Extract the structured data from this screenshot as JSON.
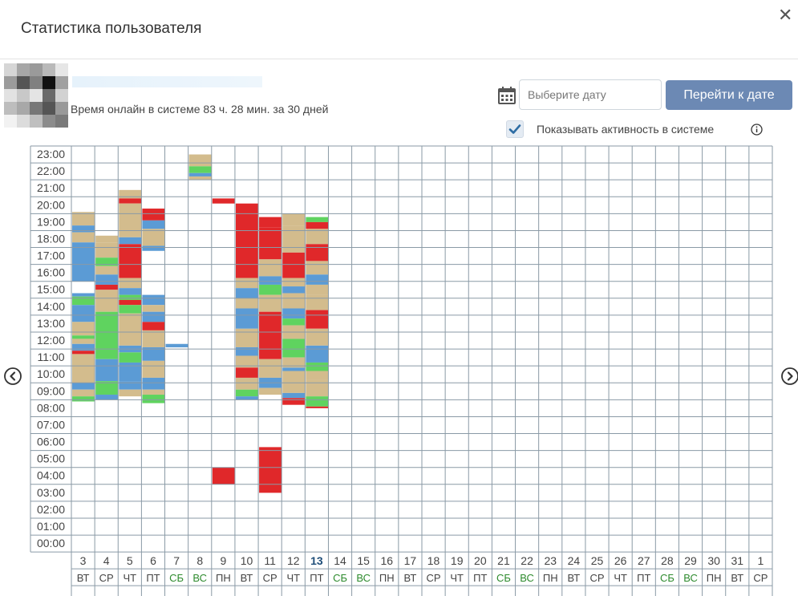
{
  "modal": {
    "title": "Статистика пользователя",
    "close_symbol": "✕"
  },
  "user": {
    "online_text": "Время онлайн в системе 83 ч. 28 мин. за 30 дней"
  },
  "controls": {
    "date_placeholder": "Выберите дату",
    "goto_button": "Перейти к дате",
    "show_activity_label": "Показывать активность в системе",
    "show_activity_checked": true
  },
  "icons": {
    "calendar": "calendar-icon",
    "check": "check-icon",
    "info": "info-icon",
    "prev": "chevron-left-circle-icon",
    "next": "chevron-right-circle-icon",
    "close": "close-icon"
  },
  "colors": {
    "beige": "#d3bc8d",
    "blue": "#5b9bd5",
    "green": "#5fd35f",
    "red": "#e0282a",
    "weekend": "#2e8b2e",
    "today": "#1f4e79",
    "button": "#6c89b4"
  },
  "hours": [
    "23:00",
    "22:00",
    "21:00",
    "20:00",
    "19:00",
    "18:00",
    "17:00",
    "16:00",
    "15:00",
    "14:00",
    "13:00",
    "12:00",
    "11:00",
    "10:00",
    "09:00",
    "08:00",
    "07:00",
    "06:00",
    "05:00",
    "04:00",
    "03:00",
    "02:00",
    "01:00",
    "00:00"
  ],
  "days": [
    {
      "date": "3",
      "dow": "ВТ"
    },
    {
      "date": "4",
      "dow": "СР"
    },
    {
      "date": "5",
      "dow": "ЧТ"
    },
    {
      "date": "6",
      "dow": "ПТ"
    },
    {
      "date": "7",
      "dow": "СБ",
      "weekend": true
    },
    {
      "date": "8",
      "dow": "ВС",
      "weekend": true
    },
    {
      "date": "9",
      "dow": "ПН"
    },
    {
      "date": "10",
      "dow": "ВТ"
    },
    {
      "date": "11",
      "dow": "СР"
    },
    {
      "date": "12",
      "dow": "ЧТ"
    },
    {
      "date": "13",
      "dow": "ПТ",
      "today": true
    },
    {
      "date": "14",
      "dow": "СБ",
      "weekend": true
    },
    {
      "date": "15",
      "dow": "ВС",
      "weekend": true
    },
    {
      "date": "16",
      "dow": "ПН"
    },
    {
      "date": "17",
      "dow": "ВТ"
    },
    {
      "date": "18",
      "dow": "СР"
    },
    {
      "date": "19",
      "dow": "ЧТ"
    },
    {
      "date": "20",
      "dow": "ПТ"
    },
    {
      "date": "21",
      "dow": "СБ",
      "weekend": true
    },
    {
      "date": "22",
      "dow": "ВС",
      "weekend": true
    },
    {
      "date": "23",
      "dow": "ПН"
    },
    {
      "date": "24",
      "dow": "ВТ"
    },
    {
      "date": "25",
      "dow": "СР"
    },
    {
      "date": "26",
      "dow": "ЧТ"
    },
    {
      "date": "27",
      "dow": "ПТ"
    },
    {
      "date": "28",
      "dow": "СБ",
      "weekend": true
    },
    {
      "date": "29",
      "dow": "ВС",
      "weekend": true
    },
    {
      "date": "30",
      "dow": "ПН"
    },
    {
      "date": "31",
      "dow": "ВТ"
    },
    {
      "date": "1",
      "dow": "СР"
    }
  ],
  "activity": [
    {
      "day": 0,
      "segs": [
        [
          20.1,
          19.3,
          "beige"
        ],
        [
          19.3,
          18.9,
          "blue"
        ],
        [
          18.9,
          18.3,
          "beige"
        ],
        [
          18.3,
          16.0,
          "blue"
        ],
        [
          15.3,
          15.1,
          "blue"
        ],
        [
          15.1,
          14.6,
          "green"
        ],
        [
          14.6,
          13.6,
          "blue"
        ],
        [
          13.6,
          12.8,
          "beige"
        ],
        [
          12.8,
          12.6,
          "green"
        ],
        [
          12.6,
          12.3,
          "beige"
        ],
        [
          12.3,
          11.9,
          "blue"
        ],
        [
          11.9,
          11.7,
          "red"
        ],
        [
          11.7,
          10.0,
          "beige"
        ],
        [
          10.0,
          9.6,
          "blue"
        ],
        [
          9.6,
          9.2,
          "beige"
        ],
        [
          9.2,
          8.9,
          "green"
        ]
      ]
    },
    {
      "day": 1,
      "segs": [
        [
          18.7,
          18.3,
          "beige"
        ],
        [
          18.3,
          17.4,
          "beige"
        ],
        [
          17.4,
          16.9,
          "green"
        ],
        [
          16.9,
          16.4,
          "beige"
        ],
        [
          16.4,
          15.8,
          "blue"
        ],
        [
          15.8,
          15.5,
          "red"
        ],
        [
          15.5,
          14.2,
          "beige"
        ],
        [
          14.2,
          11.4,
          "green"
        ],
        [
          11.4,
          10.1,
          "blue"
        ],
        [
          10.1,
          9.3,
          "green"
        ],
        [
          9.3,
          9.0,
          "blue"
        ]
      ]
    },
    {
      "day": 2,
      "segs": [
        [
          21.4,
          20.9,
          "beige"
        ],
        [
          20.9,
          20.6,
          "red"
        ],
        [
          20.6,
          18.6,
          "beige"
        ],
        [
          18.6,
          18.2,
          "blue"
        ],
        [
          18.2,
          16.2,
          "red"
        ],
        [
          16.2,
          15.6,
          "beige"
        ],
        [
          15.6,
          15.2,
          "blue"
        ],
        [
          15.2,
          14.9,
          "green"
        ],
        [
          14.9,
          14.6,
          "red"
        ],
        [
          14.6,
          14.1,
          "green"
        ],
        [
          14.1,
          12.2,
          "beige"
        ],
        [
          12.2,
          11.8,
          "blue"
        ],
        [
          11.8,
          11.2,
          "green"
        ],
        [
          11.2,
          10.1,
          "blue"
        ],
        [
          10.1,
          9.6,
          "blue"
        ],
        [
          9.6,
          9.2,
          "beige"
        ]
      ]
    },
    {
      "day": 3,
      "segs": [
        [
          20.3,
          19.6,
          "red"
        ],
        [
          19.6,
          19.1,
          "blue"
        ],
        [
          19.1,
          18.1,
          "beige"
        ],
        [
          18.1,
          17.8,
          "blue"
        ],
        [
          15.2,
          14.6,
          "blue"
        ],
        [
          14.6,
          14.2,
          "beige"
        ],
        [
          14.2,
          13.6,
          "blue"
        ],
        [
          13.6,
          13.1,
          "red"
        ],
        [
          13.1,
          12.1,
          "beige"
        ],
        [
          12.1,
          11.3,
          "blue"
        ],
        [
          11.3,
          10.3,
          "beige"
        ],
        [
          10.3,
          9.6,
          "blue"
        ],
        [
          9.6,
          9.3,
          "beige"
        ],
        [
          9.3,
          8.8,
          "green"
        ]
      ]
    },
    {
      "day": 4,
      "segs": [
        [
          12.3,
          12.1,
          "blue"
        ]
      ]
    },
    {
      "day": 5,
      "segs": [
        [
          23.5,
          22.8,
          "beige"
        ],
        [
          22.8,
          22.4,
          "green"
        ],
        [
          22.4,
          22.2,
          "blue"
        ],
        [
          22.2,
          22.0,
          "beige"
        ]
      ]
    },
    {
      "day": 6,
      "segs": [
        [
          20.9,
          20.6,
          "red"
        ],
        [
          5.0,
          4.0,
          "red"
        ]
      ]
    },
    {
      "day": 7,
      "segs": [
        [
          20.6,
          16.2,
          "red"
        ],
        [
          16.2,
          15.6,
          "beige"
        ],
        [
          15.6,
          15.0,
          "blue"
        ],
        [
          15.0,
          14.4,
          "beige"
        ],
        [
          14.4,
          13.2,
          "blue"
        ],
        [
          13.2,
          12.1,
          "beige"
        ],
        [
          12.1,
          11.6,
          "blue"
        ],
        [
          11.6,
          10.9,
          "beige"
        ],
        [
          10.9,
          10.3,
          "red"
        ],
        [
          10.3,
          9.6,
          "beige"
        ],
        [
          9.6,
          9.2,
          "green"
        ],
        [
          9.2,
          9.0,
          "blue"
        ]
      ]
    },
    {
      "day": 8,
      "segs": [
        [
          19.8,
          19.2,
          "red"
        ],
        [
          19.2,
          17.3,
          "red"
        ],
        [
          17.3,
          16.3,
          "beige"
        ],
        [
          16.3,
          15.8,
          "blue"
        ],
        [
          15.8,
          15.2,
          "green"
        ],
        [
          15.2,
          14.2,
          "beige"
        ],
        [
          14.2,
          11.4,
          "red"
        ],
        [
          11.4,
          10.3,
          "beige"
        ],
        [
          10.3,
          9.7,
          "blue"
        ],
        [
          9.7,
          9.3,
          "beige"
        ],
        [
          6.2,
          3.5,
          "red"
        ]
      ]
    },
    {
      "day": 9,
      "segs": [
        [
          20.0,
          19.3,
          "beige"
        ],
        [
          19.3,
          17.7,
          "beige"
        ],
        [
          17.7,
          16.2,
          "red"
        ],
        [
          16.2,
          15.7,
          "beige"
        ],
        [
          15.7,
          15.3,
          "blue"
        ],
        [
          15.3,
          14.4,
          "beige"
        ],
        [
          14.4,
          13.8,
          "blue"
        ],
        [
          13.8,
          13.4,
          "green"
        ],
        [
          13.4,
          12.6,
          "beige"
        ],
        [
          12.6,
          11.5,
          "green"
        ],
        [
          11.5,
          10.9,
          "beige"
        ],
        [
          10.9,
          10.7,
          "blue"
        ],
        [
          10.7,
          9.4,
          "beige"
        ],
        [
          9.4,
          9.1,
          "blue"
        ],
        [
          9.1,
          8.7,
          "red"
        ]
      ]
    },
    {
      "day": 10,
      "segs": [
        [
          19.8,
          19.5,
          "green"
        ],
        [
          19.5,
          19.1,
          "red"
        ],
        [
          19.1,
          18.2,
          "beige"
        ],
        [
          18.2,
          17.2,
          "red"
        ],
        [
          17.2,
          16.4,
          "beige"
        ],
        [
          16.4,
          15.8,
          "blue"
        ],
        [
          15.8,
          15.2,
          "beige"
        ],
        [
          15.2,
          14.3,
          "beige"
        ],
        [
          14.3,
          13.2,
          "red"
        ],
        [
          13.2,
          12.2,
          "beige"
        ],
        [
          12.2,
          11.2,
          "blue"
        ],
        [
          11.2,
          10.7,
          "green"
        ],
        [
          10.7,
          10.2,
          "beige"
        ],
        [
          10.2,
          9.2,
          "beige"
        ],
        [
          9.2,
          8.6,
          "green"
        ],
        [
          8.6,
          8.5,
          "red"
        ]
      ]
    }
  ]
}
